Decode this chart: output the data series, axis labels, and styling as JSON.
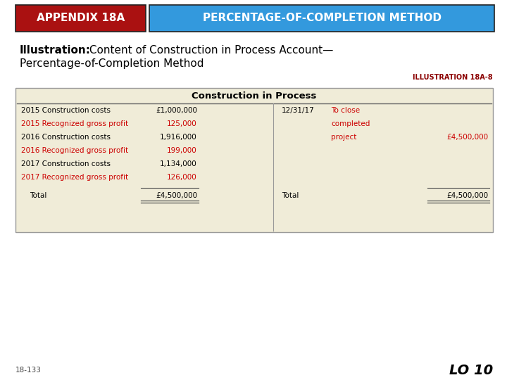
{
  "header_left_text": "APPENDIX 18A",
  "header_right_text": "PERCENTAGE-OF-COMPLETION METHOD",
  "header_left_bg": "#AA1111",
  "header_right_bg": "#3399DD",
  "header_text_color": "#FFFFFF",
  "illustration_label": "ILLUSTRATION 18A-8",
  "illustration_label_color": "#8B0000",
  "table_bg": "#F0ECD8",
  "table_border": "#999999",
  "table_title": "Construction in Process",
  "left_rows": [
    {
      "label": "2015 Construction costs",
      "value": "£1,000,000",
      "color": "#000000"
    },
    {
      "label": "2015 Recognized gross profit",
      "value": "125,000",
      "color": "#CC0000"
    },
    {
      "label": "2016 Construction costs",
      "value": "1,916,000",
      "color": "#000000"
    },
    {
      "label": "2016 Recognized gross profit",
      "value": "199,000",
      "color": "#CC0000"
    },
    {
      "label": "2017 Construction costs",
      "value": "1,134,000",
      "color": "#000000"
    },
    {
      "label": "2017 Recognized gross profit",
      "value": "126,000",
      "color": "#CC0000"
    }
  ],
  "left_total_label": "Total",
  "left_total_value": "£4,500,000",
  "right_date": "12/31/17",
  "right_label_1": "To close",
  "right_label_2": "completed",
  "right_label_3": "project",
  "right_label_color": "#CC0000",
  "right_value": "£4,500,000",
  "right_total_label": "Total",
  "right_total_value": "£4,500,000",
  "footer_left": "18-133",
  "footer_right": "LO 10",
  "bg_color": "#FFFFFF"
}
